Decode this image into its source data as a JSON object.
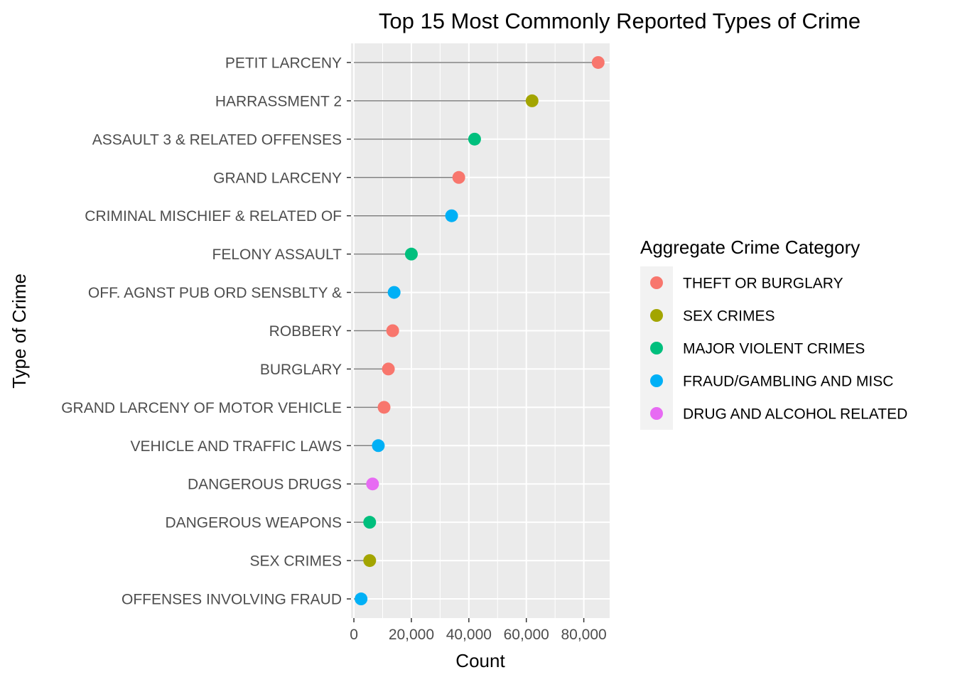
{
  "chart_data": {
    "type": "lollipop",
    "title": "Top 15 Most Commonly Reported Types of Crime",
    "xlabel": "Count",
    "ylabel": "Type of Crime",
    "xlim": [
      -1000,
      89000
    ],
    "x_ticks": [
      0,
      20000,
      40000,
      60000,
      80000
    ],
    "x_tick_labels": [
      "0",
      "20,000",
      "40,000",
      "60,000",
      "80,000"
    ],
    "grid": true,
    "legend": {
      "title": "Aggregate Crime Category",
      "position": "right",
      "entries": [
        {
          "label": "THEFT OR BURGLARY",
          "color": "#F8766D"
        },
        {
          "label": "SEX CRIMES",
          "color": "#A3A500"
        },
        {
          "label": "MAJOR VIOLENT CRIMES",
          "color": "#00BF7D"
        },
        {
          "label": "FRAUD/GAMBLING AND MISC",
          "color": "#00B0F6"
        },
        {
          "label": "DRUG AND ALCOHOL RELATED",
          "color": "#E76BF3"
        }
      ]
    },
    "points": [
      {
        "label": "PETIT LARCENY",
        "value": 85000,
        "category": 0
      },
      {
        "label": "HARRASSMENT 2",
        "value": 62000,
        "category": 1
      },
      {
        "label": "ASSAULT 3 & RELATED OFFENSES",
        "value": 42000,
        "category": 2
      },
      {
        "label": "GRAND LARCENY",
        "value": 36500,
        "category": 0
      },
      {
        "label": "CRIMINAL MISCHIEF & RELATED OF",
        "value": 34000,
        "category": 3
      },
      {
        "label": "FELONY ASSAULT",
        "value": 20000,
        "category": 2
      },
      {
        "label": "OFF. AGNST PUB ORD SENSBLTY &",
        "value": 14000,
        "category": 3
      },
      {
        "label": "ROBBERY",
        "value": 13500,
        "category": 0
      },
      {
        "label": "BURGLARY",
        "value": 12000,
        "category": 0
      },
      {
        "label": "GRAND LARCENY OF MOTOR VEHICLE",
        "value": 10500,
        "category": 0
      },
      {
        "label": "VEHICLE AND TRAFFIC LAWS",
        "value": 8500,
        "category": 3
      },
      {
        "label": "DANGEROUS DRUGS",
        "value": 6500,
        "category": 4
      },
      {
        "label": "DANGEROUS WEAPONS",
        "value": 5500,
        "category": 2
      },
      {
        "label": "SEX CRIMES",
        "value": 5500,
        "category": 1
      },
      {
        "label": "OFFENSES INVOLVING FRAUD",
        "value": 2500,
        "category": 3
      }
    ]
  }
}
